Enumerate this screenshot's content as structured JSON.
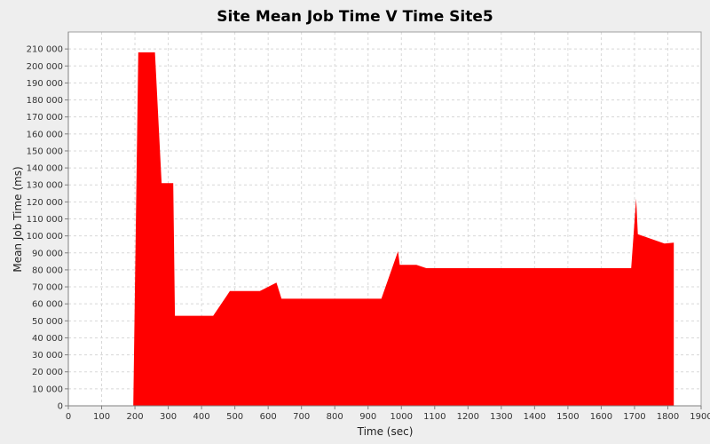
{
  "chart_data": {
    "type": "area",
    "title": "Site Mean Job Time V Time Site5",
    "xlabel": "Time (sec)",
    "ylabel": "Mean Job Time (ms)",
    "xlim": [
      0,
      1900
    ],
    "ylim": [
      0,
      220000
    ],
    "xticks": [
      0,
      100,
      200,
      300,
      400,
      500,
      600,
      700,
      800,
      900,
      1000,
      1100,
      1200,
      1300,
      1400,
      1500,
      1600,
      1700,
      1800,
      1900
    ],
    "yticks": [
      0,
      10000,
      20000,
      30000,
      40000,
      50000,
      60000,
      70000,
      80000,
      90000,
      100000,
      110000,
      120000,
      130000,
      140000,
      150000,
      160000,
      170000,
      180000,
      190000,
      200000,
      210000
    ],
    "xtick_labels": [
      "0",
      "100",
      "200",
      "300",
      "400",
      "500",
      "600",
      "700",
      "800",
      "900",
      "1000",
      "1100",
      "1200",
      "1300",
      "1400",
      "1500",
      "1600",
      "1700",
      "1800",
      "1900"
    ],
    "ytick_labels": [
      "0",
      "10 000",
      "20 000",
      "30 000",
      "40 000",
      "50 000",
      "60 000",
      "70 000",
      "80 000",
      "90 000",
      "100 000",
      "110 000",
      "120 000",
      "130 000",
      "140 000",
      "150 000",
      "160 000",
      "170 000",
      "180 000",
      "190 000",
      "200 000",
      "210 000"
    ],
    "grid": true,
    "legend": "none",
    "colors": {
      "fill": "#ff0000",
      "plot_bg": "#ffffff",
      "grid": "#d8d8d8",
      "background": "#eeeeee"
    },
    "series": [
      {
        "x": [
          195,
          195,
          210,
          260,
          280,
          315,
          320,
          435,
          485,
          575,
          625,
          640,
          940,
          990,
          995,
          1045,
          1075,
          1690,
          1705,
          1710,
          1790,
          1818,
          1818
        ],
        "y": [
          0,
          500,
          208000,
          208000,
          131000,
          131000,
          53000,
          53000,
          67500,
          67500,
          72500,
          63000,
          63000,
          91000,
          83000,
          83000,
          81000,
          81000,
          122000,
          101000,
          95500,
          96000,
          0
        ]
      }
    ]
  }
}
